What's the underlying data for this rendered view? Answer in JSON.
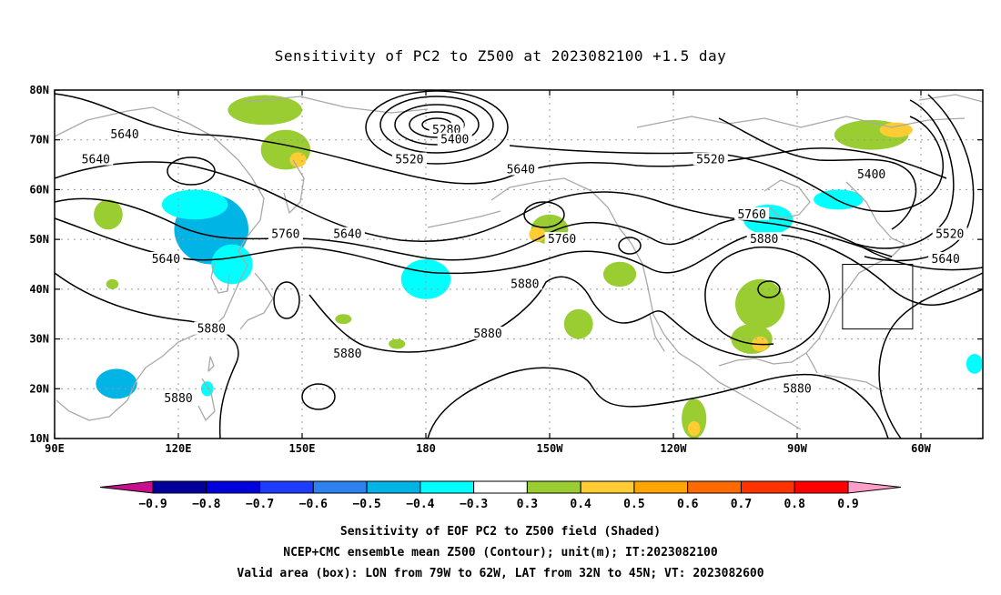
{
  "title": "Sensitivity of PC2 to Z500 at 2023082100 +1.5 day",
  "colors": {
    "coast": "#a9a9a9",
    "grid": "#9a9a9a",
    "contour": "#000000",
    "box": "#000000"
  },
  "map": {
    "lon_range_E": [
      90,
      315
    ],
    "lat_range": [
      10,
      80
    ],
    "lon_ticks": [
      {
        "lon": 90,
        "label": "90E"
      },
      {
        "lon": 120,
        "label": "120E"
      },
      {
        "lon": 150,
        "label": "150E"
      },
      {
        "lon": 180,
        "label": "180"
      },
      {
        "lon": 210,
        "label": "150W"
      },
      {
        "lon": 240,
        "label": "120W"
      },
      {
        "lon": 270,
        "label": "90W"
      },
      {
        "lon": 300,
        "label": "60W"
      }
    ],
    "lat_ticks": [
      {
        "lat": 10,
        "label": "10N"
      },
      {
        "lat": 20,
        "label": "20N"
      },
      {
        "lat": 30,
        "label": "30N"
      },
      {
        "lat": 40,
        "label": "40N"
      },
      {
        "lat": 50,
        "label": "50N"
      },
      {
        "lat": 60,
        "label": "60N"
      },
      {
        "lat": 70,
        "label": "70N"
      },
      {
        "lat": 80,
        "label": "80N"
      }
    ],
    "valid_box": {
      "lon_from_W": 79,
      "lon_to_W": 62,
      "lat_from": 32,
      "lat_to": 45
    },
    "contour_labels": [
      {
        "text": "5640",
        "lon": 107,
        "lat": 71
      },
      {
        "text": "5640",
        "lon": 100,
        "lat": 66
      },
      {
        "text": "5640",
        "lon": 117,
        "lat": 46
      },
      {
        "text": "5760",
        "lon": 146,
        "lat": 51
      },
      {
        "text": "5640",
        "lon": 161,
        "lat": 51
      },
      {
        "text": "5880",
        "lon": 128,
        "lat": 32
      },
      {
        "text": "5880",
        "lon": 120,
        "lat": 18
      },
      {
        "text": "5880",
        "lon": 161,
        "lat": 27
      },
      {
        "text": "5880",
        "lon": 195,
        "lat": 31
      },
      {
        "text": "5880",
        "lon": 204,
        "lat": 41
      },
      {
        "text": "5280",
        "lon": 185,
        "lat": 72
      },
      {
        "text": "5400",
        "lon": 187,
        "lat": 70
      },
      {
        "text": "5520",
        "lon": 176,
        "lat": 66
      },
      {
        "text": "5640",
        "lon": 203,
        "lat": 64
      },
      {
        "text": "5760",
        "lon": 213,
        "lat": 50
      },
      {
        "text": "5520",
        "lon": 249,
        "lat": 66
      },
      {
        "text": "5760",
        "lon": 259,
        "lat": 55
      },
      {
        "text": "5880",
        "lon": 262,
        "lat": 50
      },
      {
        "text": "5400",
        "lon": 288,
        "lat": 63
      },
      {
        "text": "5520",
        "lon": 307,
        "lat": 51
      },
      {
        "text": "5640",
        "lon": 306,
        "lat": 46
      },
      {
        "text": "5880",
        "lon": 270,
        "lat": 20
      }
    ],
    "shading": [
      {
        "level": -0.7,
        "lon": 131,
        "lat": 52,
        "rx": 4,
        "ry": 3
      },
      {
        "level": -0.6,
        "lon": 129,
        "lat": 51,
        "rx": 7,
        "ry": 4
      },
      {
        "level": -0.5,
        "lon": 128,
        "lat": 52,
        "rx": 9,
        "ry": 7
      },
      {
        "level": -0.4,
        "lon": 124,
        "lat": 57,
        "rx": 8,
        "ry": 3
      },
      {
        "level": -0.4,
        "lon": 133,
        "lat": 45,
        "rx": 5,
        "ry": 4
      },
      {
        "level": -0.4,
        "lon": 180,
        "lat": 42,
        "rx": 6,
        "ry": 4
      },
      {
        "level": -0.5,
        "lon": 105,
        "lat": 21,
        "rx": 5,
        "ry": 3
      },
      {
        "level": -0.4,
        "lon": 127,
        "lat": 20,
        "rx": 1.5,
        "ry": 1.5
      },
      {
        "level": -0.4,
        "lon": 280,
        "lat": 58,
        "rx": 6,
        "ry": 2
      },
      {
        "level": -0.4,
        "lon": 263,
        "lat": 54,
        "rx": 6,
        "ry": 3
      },
      {
        "level": -0.4,
        "lon": 313,
        "lat": 25,
        "rx": 2,
        "ry": 2
      },
      {
        "level": 0.3,
        "lon": 103,
        "lat": 55,
        "rx": 3.5,
        "ry": 3
      },
      {
        "level": 0.3,
        "lon": 141,
        "lat": 76,
        "rx": 9,
        "ry": 3
      },
      {
        "level": 0.3,
        "lon": 146,
        "lat": 68,
        "rx": 6,
        "ry": 4
      },
      {
        "level": 0.3,
        "lon": 210,
        "lat": 52,
        "rx": 4.5,
        "ry": 3
      },
      {
        "level": 0.3,
        "lon": 227,
        "lat": 43,
        "rx": 4,
        "ry": 2.5
      },
      {
        "level": 0.3,
        "lon": 217,
        "lat": 33,
        "rx": 3.5,
        "ry": 3
      },
      {
        "level": 0.3,
        "lon": 261,
        "lat": 37,
        "rx": 6,
        "ry": 5
      },
      {
        "level": 0.3,
        "lon": 259,
        "lat": 30,
        "rx": 5,
        "ry": 3
      },
      {
        "level": 0.3,
        "lon": 288,
        "lat": 71,
        "rx": 9,
        "ry": 3
      },
      {
        "level": 0.3,
        "lon": 245,
        "lat": 14,
        "rx": 3,
        "ry": 4
      },
      {
        "level": 0.3,
        "lon": 173,
        "lat": 29,
        "rx": 2,
        "ry": 1
      },
      {
        "level": 0.3,
        "lon": 160,
        "lat": 34,
        "rx": 2,
        "ry": 1
      },
      {
        "level": 0.3,
        "lon": 104,
        "lat": 41,
        "rx": 1.5,
        "ry": 1
      },
      {
        "level": 0.4,
        "lon": 149,
        "lat": 66,
        "rx": 2,
        "ry": 1.5
      },
      {
        "level": 0.4,
        "lon": 294,
        "lat": 72,
        "rx": 4,
        "ry": 1.5
      },
      {
        "level": 0.4,
        "lon": 261,
        "lat": 29,
        "rx": 2,
        "ry": 1.5
      },
      {
        "level": 0.4,
        "lon": 245,
        "lat": 12,
        "rx": 1.5,
        "ry": 1.5
      },
      {
        "level": 0.4,
        "lon": 207,
        "lat": 51,
        "rx": 2,
        "ry": 1.5
      }
    ]
  },
  "colorbar": {
    "levels": [
      -0.9,
      -0.8,
      -0.7,
      -0.6,
      -0.5,
      -0.4,
      -0.3,
      0.3,
      0.4,
      0.5,
      0.6,
      0.7,
      0.8,
      0.9
    ],
    "labels": [
      "−0.9",
      "−0.8",
      "−0.7",
      "−0.6",
      "−0.5",
      "−0.4",
      "−0.3",
      "0.3",
      "0.4",
      "0.5",
      "0.6",
      "0.7",
      "0.8",
      "0.9"
    ],
    "colors": [
      "#00009a",
      "#0000dc",
      "#1e3cff",
      "#2d82f0",
      "#00b4e6",
      "#00ffff",
      "#ffffff",
      "#9acd32",
      "#ffcc33",
      "#ffa500",
      "#ff6a00",
      "#ff3300",
      "#ff0000"
    ],
    "low_end": "#c8108c",
    "high_end": "#ff9ec8"
  },
  "footer": {
    "line1": "Sensitivity of EOF PC2 to Z500 field (Shaded)",
    "line2": "NCEP+CMC ensemble mean Z500 (Contour); unit(m); IT:2023082100",
    "line3": "Valid area (box): LON from 79W to 62W, LAT from 32N to 45N; VT: 2023082600"
  }
}
